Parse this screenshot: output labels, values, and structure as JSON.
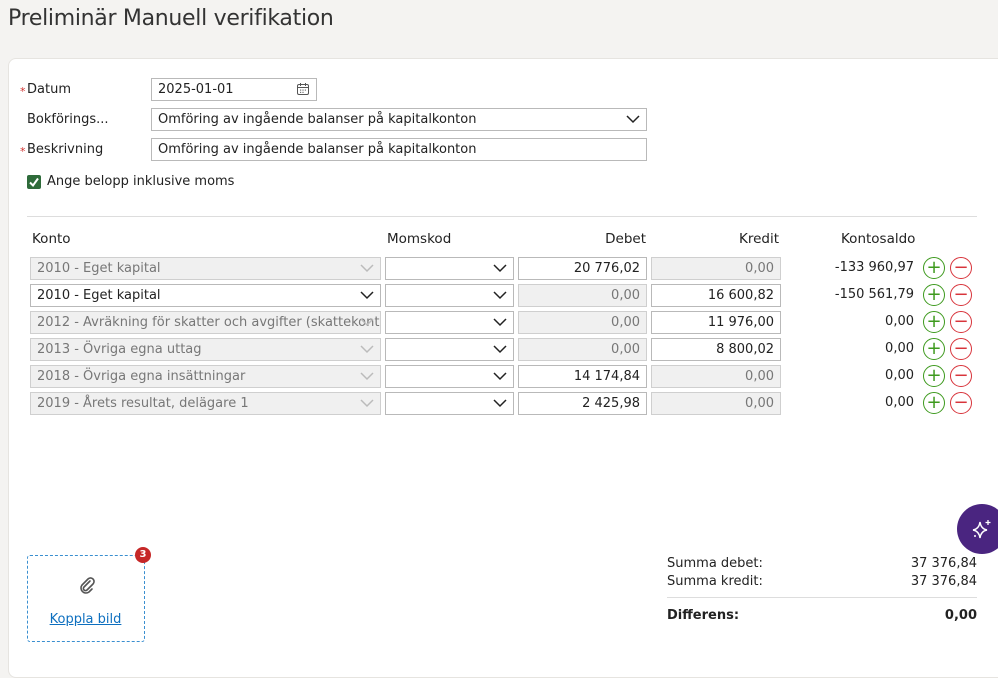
{
  "page": {
    "title": "Preliminär Manuell verifikation"
  },
  "form": {
    "required_mark": "*",
    "datum_label": "Datum",
    "datum_value": "2025-01-01",
    "bokforing_label": "Bokförings...",
    "bokforing_value": "Omföring av ingående balanser på kapitalkonton",
    "beskrivning_label": "Beskrivning",
    "beskrivning_value": "Omföring av ingående balanser på kapitalkonton",
    "moms_checkbox_label": "Ange belopp inklusive moms",
    "moms_checkbox_checked": true
  },
  "table": {
    "headers": {
      "konto": "Konto",
      "momskod": "Momskod",
      "debet": "Debet",
      "kredit": "Kredit",
      "kontosaldo": "Kontosaldo"
    },
    "rows": [
      {
        "konto": "2010 - Eget kapital",
        "konto_active": false,
        "momskod": "",
        "debet": "20 776,02",
        "kredit": "0,00",
        "saldo": "-133 960,97",
        "debet_editable": true
      },
      {
        "konto": "2010 - Eget kapital",
        "konto_active": true,
        "momskod": "",
        "debet": "0,00",
        "kredit": "16 600,82",
        "saldo": "-150 561,79",
        "debet_editable": false
      },
      {
        "konto": "2012 - Avräkning för skatter och avgifter (skattekonto",
        "konto_active": false,
        "momskod": "",
        "debet": "0,00",
        "kredit": "11 976,00",
        "saldo": "0,00",
        "debet_editable": false
      },
      {
        "konto": "2013 - Övriga egna uttag",
        "konto_active": false,
        "momskod": "",
        "debet": "0,00",
        "kredit": "8 800,02",
        "saldo": "0,00",
        "debet_editable": false
      },
      {
        "konto": "2018 - Övriga egna insättningar",
        "konto_active": false,
        "momskod": "",
        "debet": "14 174,84",
        "kredit": "0,00",
        "saldo": "0,00",
        "debet_editable": true
      },
      {
        "konto": "2019 - Årets resultat, delägare 1",
        "konto_active": false,
        "momskod": "",
        "debet": "2 425,98",
        "kredit": "0,00",
        "saldo": "0,00",
        "debet_editable": true
      }
    ]
  },
  "attach": {
    "label": "Koppla bild",
    "badge": "3"
  },
  "summary": {
    "debet_label": "Summa debet:",
    "debet_value": "37 376,84",
    "kredit_label": "Summa kredit:",
    "kredit_value": "37 376,84",
    "diff_label": "Differens:",
    "diff_value": "0,00"
  },
  "colors": {
    "accent": "#4a2580",
    "plus": "#3e9a1e",
    "minus": "#d8343b",
    "link": "#0d6fbf",
    "checkbox": "#2e6b3a"
  }
}
